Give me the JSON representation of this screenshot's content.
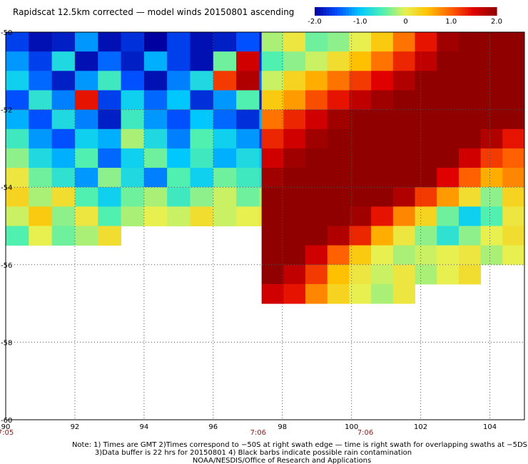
{
  "chart_data": {
    "type": "heatmap",
    "title": "Rapidscat 12.5km corrected — model winds 20150801 ascending",
    "colorbar": {
      "ticks": [
        "-2.0",
        "-1.0",
        "0",
        "1.0",
        "2.0"
      ],
      "range": [
        -2.0,
        2.0
      ],
      "colors": [
        "#0000a0",
        "#0050ff",
        "#00c8ff",
        "#50f0b0",
        "#e8f050",
        "#ffc000",
        "#ff6000",
        "#e00000",
        "#900000"
      ]
    },
    "x_axis": {
      "range": [
        90,
        105
      ],
      "ticks": [
        "90",
        "92",
        "94",
        "96",
        "98",
        "100",
        "102",
        "104"
      ]
    },
    "y_axis": {
      "range": [
        -60,
        -50
      ],
      "ticks": [
        "-50",
        "-52",
        "-54",
        "-56",
        "-58",
        "-60"
      ]
    },
    "grid": true,
    "time_labels": [
      {
        "lon": 90,
        "text": "7:05"
      },
      {
        "lon": 97.3,
        "text": "7:06"
      },
      {
        "lon": 100.4,
        "text": "7:06"
      }
    ],
    "notes": [
      "Note: 1) Times are GMT 2)Times correspond to −50S at right swath edge — time is right swath for overlapping swaths at −5DS",
      "3)Data buffer is 22 hrs for 20150801 4) Black barbs indicate possible rain contamination",
      "NOAA/NESDIS/Office of Research and Applications"
    ],
    "swaths": [
      {
        "name": "left swath",
        "lon_start": 90.0,
        "lon_end": 98.0,
        "rows": [
          {
            "lat": -50.0,
            "values": [
              -1.6,
              -1.9,
              -1.8,
              -1.2,
              -1.9,
              -1.7,
              -2.0,
              -1.6,
              -1.9,
              -1.8,
              -1.5,
              -1.9
            ]
          },
          {
            "lat": -50.5,
            "values": [
              -1.2,
              -1.6,
              -0.8,
              -1.9,
              -1.4,
              -1.8,
              -1.1,
              -1.6,
              -1.9,
              -0.4,
              1.6,
              -1.7
            ]
          },
          {
            "lat": -51.0,
            "values": [
              -0.9,
              -1.4,
              -1.8,
              -1.2,
              -0.6,
              -1.5,
              -1.9,
              -1.3,
              -0.8,
              1.2,
              1.8,
              -1.4
            ]
          },
          {
            "lat": -51.5,
            "values": [
              -1.5,
              -0.7,
              -1.3,
              1.4,
              -1.6,
              -0.9,
              -1.4,
              -1.0,
              -1.7,
              -1.2,
              -0.5,
              -1.8
            ]
          },
          {
            "lat": -52.0,
            "values": [
              -1.1,
              -1.5,
              -0.8,
              -1.3,
              -1.8,
              -0.6,
              -1.2,
              -1.5,
              -1.0,
              -1.4,
              -1.7,
              -1.1
            ]
          },
          {
            "lat": -52.5,
            "values": [
              -0.6,
              -1.2,
              -1.5,
              -0.9,
              -1.1,
              -0.2,
              -0.8,
              -1.3,
              -0.5,
              -0.9,
              -1.2,
              -1.6
            ]
          },
          {
            "lat": -53.0,
            "values": [
              -0.3,
              -0.8,
              -1.1,
              -0.5,
              -1.4,
              -0.9,
              -0.4,
              -1.0,
              -0.6,
              -1.1,
              -0.8,
              -1.0
            ]
          },
          {
            "lat": -53.5,
            "values": [
              0.1,
              -0.4,
              -0.7,
              -1.2,
              -0.3,
              -0.8,
              -1.3,
              -0.5,
              -0.9,
              -0.4,
              -0.6,
              -0.7
            ]
          },
          {
            "lat": -54.0,
            "values": [
              0.3,
              -0.2,
              0.2,
              -0.5,
              -0.9,
              -0.4,
              -0.2,
              -0.6,
              -0.3,
              -0.1,
              -0.4,
              -0.2
            ]
          },
          {
            "lat": -54.5,
            "values": [
              -0.1,
              0.4,
              -0.3,
              0.1,
              -0.5,
              -0.2,
              0.0,
              -0.1,
              0.2,
              -0.1,
              0.0,
              0.1
            ]
          },
          {
            "lat": -55.0,
            "values": [
              -0.5,
              0.0,
              -0.4,
              -0.2,
              0.2
            ]
          }
        ]
      },
      {
        "name": "right swath",
        "lon_start": 97.4,
        "lon_end": 105.0,
        "rows": [
          {
            "lat": -50.0,
            "values": [
              -0.2,
              0.1,
              -0.4,
              -0.3,
              0.0,
              0.4,
              0.9,
              1.4,
              1.9,
              2.0,
              2.0,
              2.0
            ]
          },
          {
            "lat": -50.5,
            "values": [
              -0.5,
              -0.3,
              -0.1,
              0.2,
              0.5,
              0.9,
              1.3,
              1.7,
              2.0,
              2.0,
              2.0,
              2.0
            ]
          },
          {
            "lat": -51.0,
            "values": [
              -0.1,
              0.3,
              0.6,
              0.9,
              1.2,
              1.5,
              1.8,
              2.0,
              2.0,
              2.0,
              2.0,
              2.0
            ]
          },
          {
            "lat": -51.5,
            "values": [
              0.4,
              0.7,
              1.1,
              1.4,
              1.7,
              1.9,
              2.0,
              2.0,
              2.0,
              2.0,
              2.0,
              2.0
            ]
          },
          {
            "lat": -52.0,
            "values": [
              0.9,
              1.3,
              1.6,
              1.9,
              2.0,
              2.0,
              2.0,
              2.0,
              2.0,
              2.0,
              2.0,
              2.0
            ]
          },
          {
            "lat": -52.5,
            "values": [
              1.3,
              1.6,
              1.9,
              2.0,
              2.0,
              2.0,
              2.0,
              2.0,
              2.0,
              2.0,
              1.8,
              1.4
            ]
          },
          {
            "lat": -53.0,
            "values": [
              1.6,
              1.9,
              2.0,
              2.0,
              2.0,
              2.0,
              2.0,
              2.0,
              2.0,
              1.6,
              1.2,
              1.0
            ]
          },
          {
            "lat": -53.5,
            "values": [
              1.9,
              2.0,
              2.0,
              2.0,
              2.0,
              2.0,
              2.0,
              2.0,
              1.5,
              1.0,
              0.6,
              0.8
            ]
          },
          {
            "lat": -54.0,
            "values": [
              2.0,
              2.0,
              2.0,
              2.0,
              2.0,
              2.0,
              1.8,
              1.2,
              0.7,
              0.2,
              -0.3,
              0.3
            ]
          },
          {
            "lat": -54.5,
            "values": [
              2.0,
              2.0,
              2.0,
              2.0,
              1.9,
              1.4,
              0.8,
              0.3,
              -0.4,
              -0.9,
              -0.5,
              0.1
            ]
          },
          {
            "lat": -55.0,
            "values": [
              2.0,
              2.0,
              2.0,
              1.8,
              1.3,
              0.6,
              0.1,
              -0.3,
              -0.7,
              -0.3,
              0.0,
              0.2
            ]
          },
          {
            "lat": -55.5,
            "values": [
              2.0,
              2.0,
              1.6,
              1.0,
              0.4,
              0.0,
              -0.2,
              -0.1,
              0.0,
              0.1,
              -0.2,
              0.0
            ]
          },
          {
            "lat": -56.0,
            "values": [
              2.0,
              1.7,
              1.2,
              0.5,
              0.1,
              -0.1,
              0.1,
              -0.2,
              0.0,
              0.2
            ]
          },
          {
            "lat": -56.5,
            "values": [
              1.6,
              1.4,
              0.8,
              0.3,
              0.0,
              -0.2,
              0.1
            ]
          }
        ]
      }
    ]
  }
}
